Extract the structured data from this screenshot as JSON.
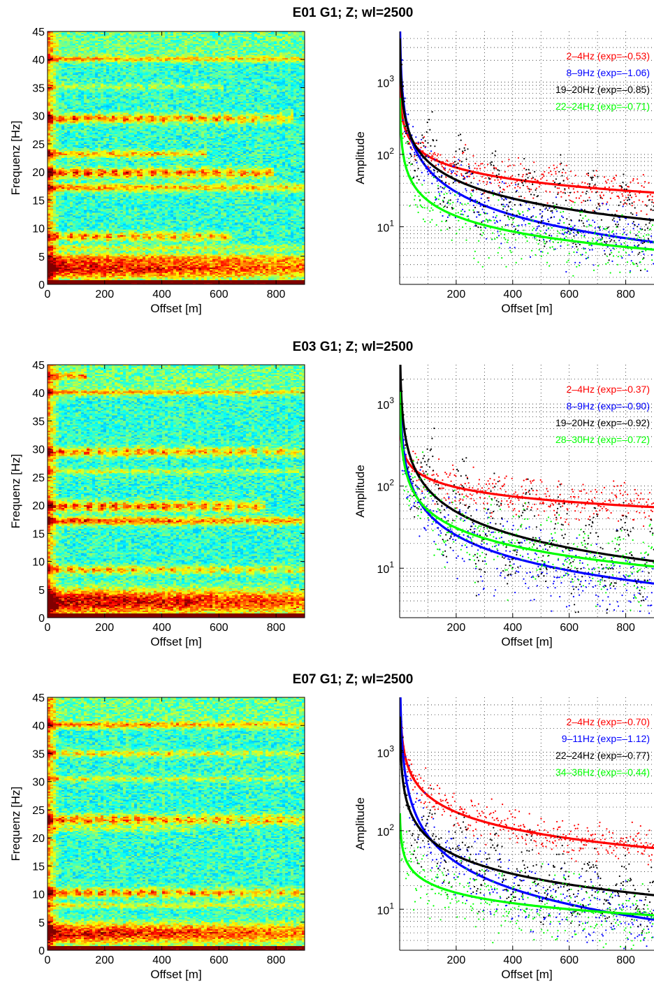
{
  "figure": {
    "background": "#ffffff",
    "colormap": "jet"
  },
  "chart_data": [
    {
      "type": "heatmap",
      "title": "E01 G1; Z; wl=2500",
      "xlabel": "Offset [m]",
      "ylabel": "Frequenz [Hz]",
      "xlim": [
        0,
        900
      ],
      "ylim": [
        0,
        45
      ],
      "xticks": [
        0,
        200,
        400,
        600,
        800
      ],
      "yticks": [
        0,
        5,
        10,
        15,
        20,
        25,
        30,
        35,
        40,
        45
      ],
      "background_level": 0.42,
      "bands": [
        {
          "freq": 2.8,
          "width": 1.8,
          "strength": 0.5,
          "extent": [
            0,
            900
          ],
          "segmented": false
        },
        {
          "freq": 4.7,
          "width": 0.8,
          "strength": 0.22,
          "extent": [
            0,
            900
          ],
          "segmented": false
        },
        {
          "freq": 6.5,
          "width": 0.5,
          "strength": 0.2,
          "extent": [
            0,
            900
          ],
          "segmented": false
        },
        {
          "freq": 8.5,
          "width": 0.8,
          "strength": 0.4,
          "extent": [
            0,
            650
          ],
          "segmented": true
        },
        {
          "freq": 17.2,
          "width": 0.7,
          "strength": 0.32,
          "extent": [
            0,
            900
          ],
          "segmented": false
        },
        {
          "freq": 19.8,
          "width": 0.9,
          "strength": 0.48,
          "extent": [
            0,
            790
          ],
          "segmented": true
        },
        {
          "freq": 23.2,
          "width": 0.6,
          "strength": 0.3,
          "extent": [
            0,
            560
          ],
          "segmented": false
        },
        {
          "freq": 29.5,
          "width": 0.8,
          "strength": 0.45,
          "extent": [
            0,
            860
          ],
          "segmented": true
        },
        {
          "freq": 35.2,
          "width": 0.5,
          "strength": 0.18,
          "extent": [
            0,
            620
          ],
          "segmented": true
        },
        {
          "freq": 40.0,
          "width": 0.5,
          "strength": 0.28,
          "extent": [
            0,
            900
          ],
          "segmented": false
        }
      ]
    },
    {
      "type": "scatter",
      "title": "",
      "xlabel": "Offset [m]",
      "ylabel": "Amplitude",
      "xlim": [
        0,
        900
      ],
      "ylim": [
        1.6,
        5000
      ],
      "yscale": "log",
      "grid": true,
      "xticks": [
        200,
        400,
        600,
        800
      ],
      "yticks": [
        10,
        100,
        1000
      ],
      "yticklabels": [
        {
          "base": "10",
          "exp": "1"
        },
        {
          "base": "10",
          "exp": "2"
        },
        {
          "base": "10",
          "exp": "3"
        }
      ],
      "legend_position": "top-right",
      "series": [
        {
          "name": "2–4Hz (exp=–0.53)",
          "color": "#ff0000",
          "exponent": -0.53,
          "amp_at_100": 95,
          "scatter": 0.18,
          "oscillation": 0.0
        },
        {
          "name": "8–9Hz (exp=–1.06)",
          "color": "#0000ff",
          "exponent": -1.06,
          "amp_at_100": 63,
          "scatter": 0.32,
          "oscillation": 0.0
        },
        {
          "name": "19–20Hz (exp=–0.85)",
          "color": "#000000",
          "exponent": -0.85,
          "amp_at_100": 80,
          "scatter": 0.25,
          "oscillation": 0.4
        },
        {
          "name": "22–24Hz (exp=–0.71)",
          "color": "#00ff00",
          "exponent": -0.71,
          "amp_at_100": 23,
          "scatter": 0.3,
          "oscillation": 0.0
        }
      ]
    },
    {
      "type": "heatmap",
      "title": "E03 G1; Z; wl=2500",
      "xlabel": "Offset [m]",
      "ylabel": "Frequenz [Hz]",
      "xlim": [
        0,
        900
      ],
      "ylim": [
        0,
        45
      ],
      "xticks": [
        0,
        200,
        400,
        600,
        800
      ],
      "yticks": [
        0,
        5,
        10,
        15,
        20,
        25,
        30,
        35,
        40,
        45
      ],
      "background_level": 0.42,
      "bands": [
        {
          "freq": 2.8,
          "width": 2.2,
          "strength": 0.55,
          "extent": [
            0,
            900
          ],
          "segmented": false
        },
        {
          "freq": 8.5,
          "width": 0.7,
          "strength": 0.38,
          "extent": [
            0,
            900
          ],
          "segmented": true
        },
        {
          "freq": 17.2,
          "width": 0.7,
          "strength": 0.42,
          "extent": [
            0,
            900
          ],
          "segmented": false
        },
        {
          "freq": 19.8,
          "width": 0.9,
          "strength": 0.48,
          "extent": [
            0,
            760
          ],
          "segmented": true
        },
        {
          "freq": 26.0,
          "width": 0.5,
          "strength": 0.18,
          "extent": [
            0,
            900
          ],
          "segmented": false
        },
        {
          "freq": 29.5,
          "width": 0.8,
          "strength": 0.42,
          "extent": [
            0,
            900
          ],
          "segmented": true
        },
        {
          "freq": 40.0,
          "width": 0.5,
          "strength": 0.28,
          "extent": [
            0,
            900
          ],
          "segmented": false
        },
        {
          "freq": 43.0,
          "width": 0.6,
          "strength": 0.3,
          "extent": [
            0,
            140
          ],
          "segmented": true
        }
      ]
    },
    {
      "type": "scatter",
      "title": "",
      "xlabel": "Offset [m]",
      "ylabel": "Amplitude",
      "xlim": [
        0,
        900
      ],
      "ylim": [
        2.5,
        3000
      ],
      "yscale": "log",
      "grid": true,
      "xticks": [
        200,
        400,
        600,
        800
      ],
      "yticks": [
        10,
        100,
        1000
      ],
      "yticklabels": [
        {
          "base": "10",
          "exp": "1"
        },
        {
          "base": "10",
          "exp": "2"
        },
        {
          "base": "10",
          "exp": "3"
        }
      ],
      "legend_position": "top-right",
      "series": [
        {
          "name": "2–4Hz (exp=–0.37)",
          "color": "#ff0000",
          "exponent": -0.37,
          "amp_at_100": 125,
          "scatter": 0.18,
          "oscillation": 0.0
        },
        {
          "name": "8–9Hz (exp=–0.90)",
          "color": "#0000ff",
          "exponent": -0.9,
          "amp_at_100": 47,
          "scatter": 0.32,
          "oscillation": 0.0
        },
        {
          "name": "19–20Hz (exp=–0.92)",
          "color": "#000000",
          "exponent": -0.92,
          "amp_at_100": 92,
          "scatter": 0.25,
          "oscillation": 0.45
        },
        {
          "name": "28–30Hz (exp=–0.72)",
          "color": "#00ff00",
          "exponent": -0.72,
          "amp_at_100": 51,
          "scatter": 0.3,
          "oscillation": 0.15
        }
      ]
    },
    {
      "type": "heatmap",
      "title": "E07 G1; Z; wl=2500",
      "xlabel": "Offset [m]",
      "ylabel": "Frequenz [Hz]",
      "xlim": [
        0,
        900
      ],
      "ylim": [
        0,
        45
      ],
      "xticks": [
        0,
        200,
        400,
        600,
        800
      ],
      "yticks": [
        0,
        5,
        10,
        15,
        20,
        25,
        30,
        35,
        40,
        45
      ],
      "background_level": 0.42,
      "bands": [
        {
          "freq": 3.0,
          "width": 1.8,
          "strength": 0.5,
          "extent": [
            0,
            900
          ],
          "segmented": false
        },
        {
          "freq": 8.0,
          "width": 0.5,
          "strength": 0.2,
          "extent": [
            0,
            900
          ],
          "segmented": false
        },
        {
          "freq": 10.2,
          "width": 0.8,
          "strength": 0.45,
          "extent": [
            0,
            900
          ],
          "segmented": true
        },
        {
          "freq": 21.5,
          "width": 0.5,
          "strength": 0.18,
          "extent": [
            0,
            500
          ],
          "segmented": true
        },
        {
          "freq": 23.2,
          "width": 0.9,
          "strength": 0.45,
          "extent": [
            0,
            900
          ],
          "segmented": true
        },
        {
          "freq": 30.5,
          "width": 0.5,
          "strength": 0.25,
          "extent": [
            0,
            900
          ],
          "segmented": true
        },
        {
          "freq": 35.0,
          "width": 0.6,
          "strength": 0.3,
          "extent": [
            0,
            900
          ],
          "segmented": true
        },
        {
          "freq": 40.0,
          "width": 0.6,
          "strength": 0.3,
          "extent": [
            0,
            900
          ],
          "segmented": false
        }
      ]
    },
    {
      "type": "scatter",
      "title": "",
      "xlabel": "Offset [m]",
      "ylabel": "Amplitude",
      "xlim": [
        0,
        900
      ],
      "ylim": [
        3,
        5000
      ],
      "yscale": "log",
      "grid": true,
      "xticks": [
        200,
        400,
        600,
        800
      ],
      "yticks": [
        10,
        100,
        1000
      ],
      "yticklabels": [
        {
          "base": "10",
          "exp": "1"
        },
        {
          "base": "10",
          "exp": "2"
        },
        {
          "base": "10",
          "exp": "3"
        }
      ],
      "legend_position": "top-right",
      "series": [
        {
          "name": "2–4Hz (exp=–0.70)",
          "color": "#ff0000",
          "exponent": -0.7,
          "amp_at_100": 280,
          "scatter": 0.18,
          "oscillation": 0.0
        },
        {
          "name": "9–11Hz (exp=–1.12)",
          "color": "#0000ff",
          "exponent": -1.12,
          "amp_at_100": 86,
          "scatter": 0.3,
          "oscillation": 0.0
        },
        {
          "name": "22–24Hz (exp=–0.77)",
          "color": "#000000",
          "exponent": -0.77,
          "amp_at_100": 82,
          "scatter": 0.25,
          "oscillation": 0.3
        },
        {
          "name": "34–36Hz (exp=–0.44)",
          "color": "#00ff00",
          "exponent": -0.44,
          "amp_at_100": 22,
          "scatter": 0.3,
          "oscillation": 0.0
        }
      ]
    }
  ]
}
